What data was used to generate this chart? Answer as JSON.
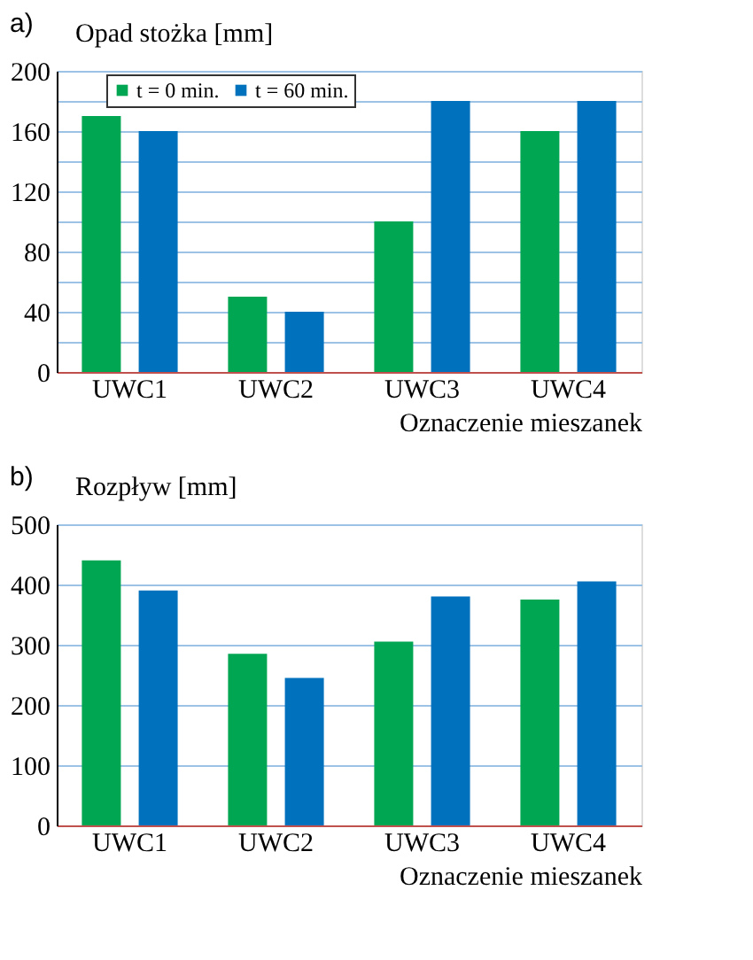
{
  "chart_data": [
    {
      "type": "bar",
      "title": "a)",
      "ylabel": "Opad stożka [mm]",
      "xlabel": "Oznaczenie mieszanek",
      "categories": [
        "UWC1",
        "UWC2",
        "UWC3",
        "UWC4"
      ],
      "series": [
        {
          "name": "t = 0 min.",
          "color": "#00a651",
          "values": [
            170,
            50,
            100,
            160
          ]
        },
        {
          "name": "t = 60 min.",
          "color": "#0071bc",
          "values": [
            160,
            40,
            180,
            180
          ]
        }
      ],
      "ylim": [
        0,
        200
      ],
      "yticks": [
        0,
        {
          "value": 20,
          "label": null
        },
        40,
        {
          "value": 60,
          "label": null
        },
        80,
        {
          "value": 100,
          "label": null
        },
        120,
        {
          "value": 140,
          "label": null
        },
        160,
        {
          "value": 180,
          "label": null
        },
        200
      ],
      "grid": "y",
      "legend": "top"
    },
    {
      "type": "bar",
      "title": "b)",
      "ylabel": "Rozpływ [mm]",
      "xlabel": "Oznaczenie mieszanek",
      "categories": [
        "UWC1",
        "UWC2",
        "UWC3",
        "UWC4"
      ],
      "series": [
        {
          "name": "t = 0 min.",
          "color": "#00a651",
          "values": [
            440,
            285,
            305,
            375
          ]
        },
        {
          "name": "t = 60 min.",
          "color": "#0071bc",
          "values": [
            390,
            245,
            380,
            405
          ]
        }
      ],
      "ylim": [
        0,
        500
      ],
      "yticks": [
        0,
        100,
        200,
        300,
        400,
        500
      ],
      "grid": "y",
      "legend": "top"
    }
  ]
}
